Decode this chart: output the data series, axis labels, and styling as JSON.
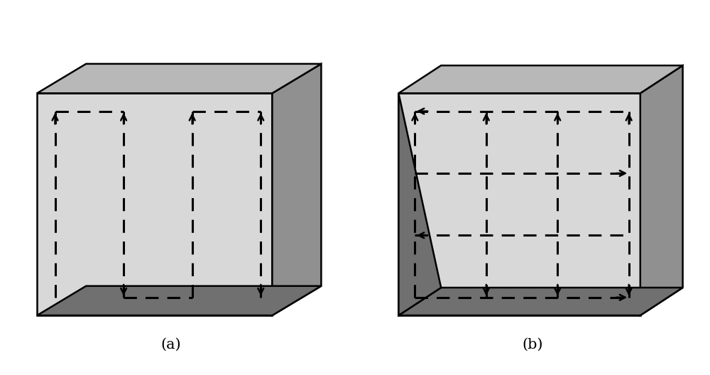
{
  "fig_width": 10.0,
  "fig_height": 5.28,
  "bg_color": "#ffffff",
  "box_face_color": "#d8d8d8",
  "box_right_color": "#909090",
  "box_bottom_color": "#707070",
  "box_top_color": "#b8b8b8",
  "label_a": "(a)",
  "label_b": "(b)",
  "label_fontsize": 15,
  "arrow_color": "#000000",
  "dash_lw": 2.2,
  "dash_on": 6,
  "dash_off": 4,
  "arrow_ms": 14
}
